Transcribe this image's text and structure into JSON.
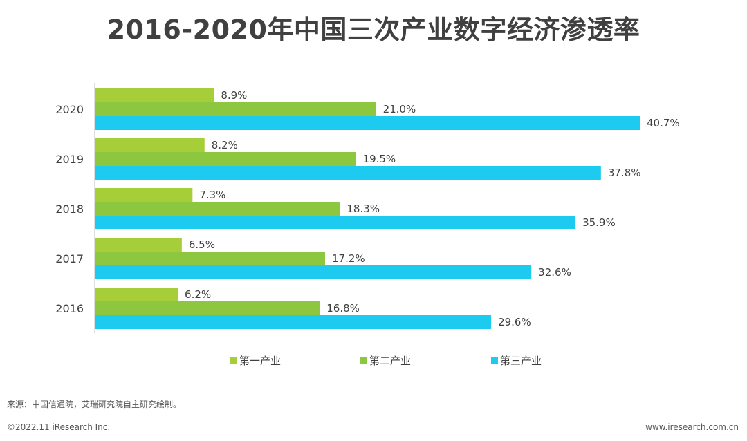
{
  "page": {
    "source": "来源：中国信通院，艾瑞研究院自主研究绘制。",
    "copyright": "©2022.11 iResearch Inc.",
    "website": "www.iresearch.com.cn"
  },
  "chart_data": {
    "type": "bar",
    "orientation": "horizontal",
    "title": "2016-2020年中国三次产业数字经济渗透率",
    "categories": [
      "2020",
      "2019",
      "2018",
      "2017",
      "2016"
    ],
    "series": [
      {
        "name": "第一产业",
        "color": "#a6ce39",
        "values": [
          8.9,
          8.2,
          7.3,
          6.5,
          6.2
        ],
        "labels": [
          "8.9%",
          "8.2%",
          "7.3%",
          "6.5%",
          "6.2%"
        ]
      },
      {
        "name": "第二产业",
        "color": "#8dc63f",
        "values": [
          21.0,
          19.5,
          18.3,
          17.2,
          16.8
        ],
        "labels": [
          "21.0%",
          "19.5%",
          "18.3%",
          "17.2%",
          "16.8%"
        ]
      },
      {
        "name": "第三产业",
        "color": "#1ecbf0",
        "values": [
          40.7,
          37.8,
          35.9,
          32.6,
          29.6
        ],
        "labels": [
          "40.7%",
          "37.8%",
          "35.9%",
          "32.6%",
          "29.6%"
        ]
      }
    ],
    "xlabel": "",
    "ylabel": "",
    "xlim": [
      0,
      41
    ],
    "legend": "bottom",
    "grid": false
  }
}
